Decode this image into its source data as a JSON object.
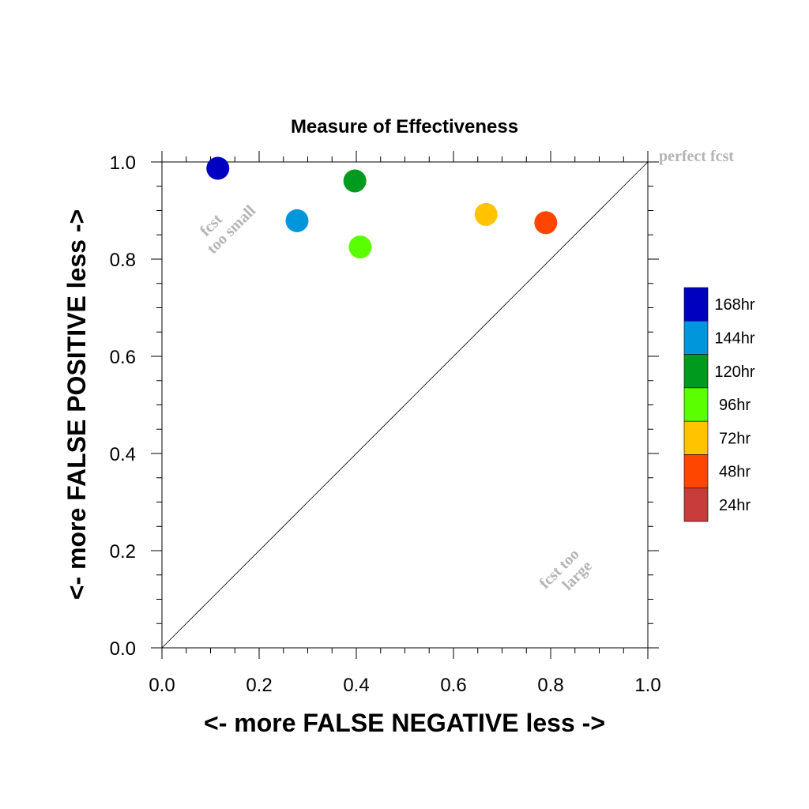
{
  "chart_data": {
    "type": "scatter",
    "title": "Measure of Effectiveness",
    "xlabel": "<- more   FALSE NEGATIVE   less ->",
    "ylabel": "<- more   FALSE POSITIVE   less ->",
    "xlim": [
      0.0,
      1.0
    ],
    "ylim": [
      0.0,
      1.0
    ],
    "x_ticks": [
      "0.0",
      "0.2",
      "0.4",
      "0.6",
      "0.8",
      "1.0"
    ],
    "y_ticks": [
      "0.0",
      "0.2",
      "0.4",
      "0.6",
      "0.8",
      "1.0"
    ],
    "grid": false,
    "diagonal_line": true,
    "annotations": {
      "perfect": "perfect fcst",
      "too_small_1": "fcst",
      "too_small_2": "too small",
      "too_large_1": "fcst too",
      "too_large_2": "large"
    },
    "legend_position": "right",
    "series": [
      {
        "name": "168hr",
        "color": "#0000c0",
        "x": 0.115,
        "y": 0.987
      },
      {
        "name": "144hr",
        "color": "#0096dc",
        "x": 0.278,
        "y": 0.879
      },
      {
        "name": "120hr",
        "color": "#009a1e",
        "x": 0.397,
        "y": 0.961
      },
      {
        "name": "96hr",
        "color": "#5aff00",
        "x": 0.408,
        "y": 0.825
      },
      {
        "name": "72hr",
        "color": "#ffc300",
        "x": 0.667,
        "y": 0.892
      },
      {
        "name": "48hr",
        "color": "#ff4600",
        "x": 0.79,
        "y": 0.875
      },
      {
        "name": "24hr",
        "color": "#c83c3c",
        "x": null,
        "y": null
      }
    ]
  }
}
